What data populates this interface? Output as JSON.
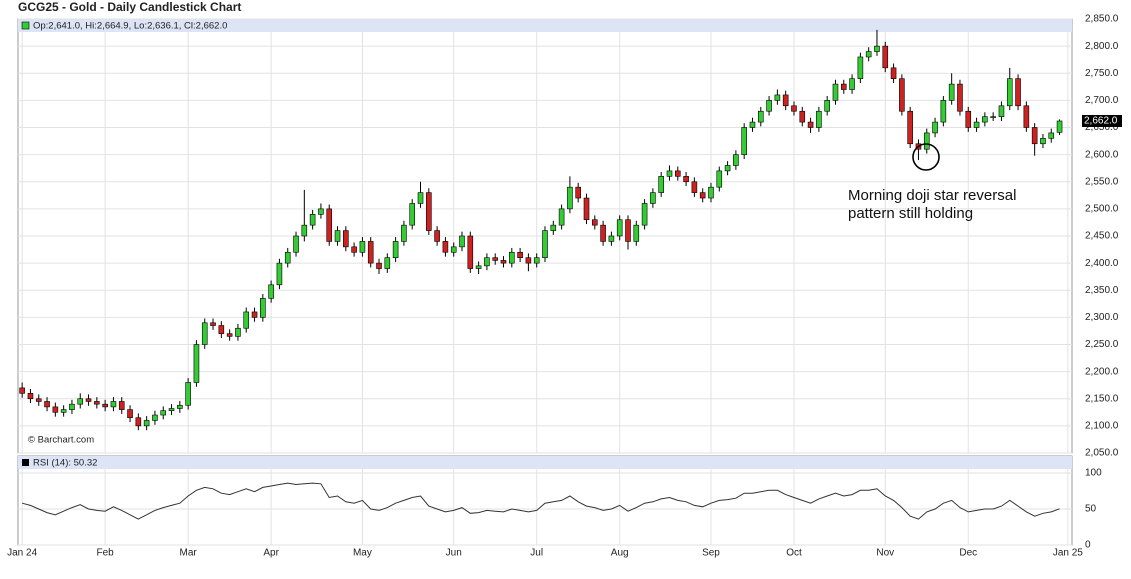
{
  "chart_data": [
    {
      "type": "candlestick",
      "title": "GCG25 - Gold - Daily Candlestick Chart",
      "legend_label": "Op:2,641.0, Hi:2,664.9, Lo:2,636.1, Cl:2,662.0",
      "credit": "© Barchart.com",
      "annotation": "Morning doji star reversal pattern still holding",
      "up_color": "#33cc33",
      "down_color": "#cc2222",
      "grid": true,
      "xlim": [
        -0.5,
        126.5
      ],
      "xticks": [
        {
          "value": 0,
          "label": "Jan 24"
        },
        {
          "value": 10,
          "label": "Feb"
        },
        {
          "value": 20,
          "label": "Mar"
        },
        {
          "value": 30,
          "label": "Apr"
        },
        {
          "value": 41,
          "label": "May"
        },
        {
          "value": 52,
          "label": "Jun"
        },
        {
          "value": 62,
          "label": "Jul"
        },
        {
          "value": 72,
          "label": "Aug"
        },
        {
          "value": 83,
          "label": "Sep"
        },
        {
          "value": 93,
          "label": "Oct"
        },
        {
          "value": 104,
          "label": "Nov"
        },
        {
          "value": 114,
          "label": "Dec"
        },
        {
          "value": 126,
          "label": "Jan 25"
        }
      ],
      "ylim": [
        2050,
        2850
      ],
      "yticks": [
        {
          "value": 2050,
          "label": "2,050.0"
        },
        {
          "value": 2100,
          "label": "2,100.0"
        },
        {
          "value": 2150,
          "label": "2,150.0"
        },
        {
          "value": 2200,
          "label": "2,200.0"
        },
        {
          "value": 2250,
          "label": "2,250.0"
        },
        {
          "value": 2300,
          "label": "2,300.0"
        },
        {
          "value": 2350,
          "label": "2,350.0"
        },
        {
          "value": 2400,
          "label": "2,400.0"
        },
        {
          "value": 2450,
          "label": "2,450.0"
        },
        {
          "value": 2500,
          "label": "2,500.0"
        },
        {
          "value": 2550,
          "label": "2,550.0"
        },
        {
          "value": 2600,
          "label": "2,600.0"
        },
        {
          "value": 2650,
          "label": "2,650.0"
        },
        {
          "value": 2700,
          "label": "2,700.0"
        },
        {
          "value": 2750,
          "label": "2,750.0"
        },
        {
          "value": 2800,
          "label": "2,800.0"
        },
        {
          "value": 2850,
          "label": "2,850.0"
        }
      ],
      "last_price": {
        "value": 2662.0,
        "label": "2,662.0"
      },
      "open": [
        2170,
        2160,
        2150,
        2145,
        2135,
        2125,
        2130,
        2140,
        2150,
        2145,
        2140,
        2135,
        2145,
        2130,
        2115,
        2100,
        2110,
        2120,
        2128,
        2132,
        2138,
        2180,
        2250,
        2290,
        2285,
        2270,
        2265,
        2280,
        2310,
        2300,
        2335,
        2360,
        2400,
        2420,
        2450,
        2470,
        2490,
        2500,
        2440,
        2460,
        2430,
        2420,
        2440,
        2400,
        2390,
        2410,
        2440,
        2470,
        2510,
        2530,
        2460,
        2440,
        2420,
        2430,
        2450,
        2390,
        2395,
        2410,
        2405,
        2400,
        2420,
        2410,
        2400,
        2410,
        2460,
        2470,
        2500,
        2540,
        2520,
        2480,
        2470,
        2440,
        2450,
        2480,
        2440,
        2470,
        2510,
        2530,
        2560,
        2570,
        2560,
        2550,
        2530,
        2520,
        2540,
        2570,
        2580,
        2600,
        2650,
        2660,
        2680,
        2700,
        2710,
        2690,
        2680,
        2660,
        2650,
        2680,
        2700,
        2730,
        2720,
        2740,
        2780,
        2790,
        2800,
        2760,
        2740,
        2680,
        2620,
        2610,
        2640,
        2660,
        2700,
        2730,
        2680,
        2650,
        2660,
        2670,
        2670,
        2690,
        2740,
        2690,
        2650,
        2620,
        2630,
        2641.0
      ],
      "high": [
        2180,
        2168,
        2158,
        2153,
        2143,
        2138,
        2148,
        2160,
        2158,
        2153,
        2148,
        2153,
        2153,
        2138,
        2123,
        2118,
        2128,
        2136,
        2140,
        2146,
        2188,
        2258,
        2298,
        2298,
        2293,
        2278,
        2288,
        2318,
        2318,
        2343,
        2368,
        2408,
        2428,
        2458,
        2535,
        2498,
        2510,
        2508,
        2468,
        2468,
        2438,
        2448,
        2448,
        2408,
        2418,
        2448,
        2478,
        2518,
        2550,
        2538,
        2468,
        2448,
        2438,
        2458,
        2458,
        2403,
        2418,
        2418,
        2413,
        2428,
        2428,
        2418,
        2418,
        2468,
        2478,
        2508,
        2560,
        2548,
        2528,
        2488,
        2478,
        2458,
        2488,
        2488,
        2478,
        2518,
        2538,
        2568,
        2580,
        2578,
        2568,
        2558,
        2538,
        2548,
        2578,
        2588,
        2608,
        2658,
        2668,
        2688,
        2708,
        2720,
        2718,
        2698,
        2688,
        2668,
        2688,
        2708,
        2738,
        2738,
        2748,
        2788,
        2798,
        2830,
        2808,
        2768,
        2748,
        2688,
        2628,
        2648,
        2668,
        2708,
        2750,
        2738,
        2688,
        2668,
        2678,
        2678,
        2698,
        2760,
        2748,
        2698,
        2658,
        2638,
        2648,
        2664.9
      ],
      "low": [
        2152,
        2142,
        2137,
        2127,
        2117,
        2117,
        2122,
        2132,
        2137,
        2132,
        2127,
        2127,
        2122,
        2107,
        2092,
        2092,
        2102,
        2112,
        2120,
        2124,
        2130,
        2172,
        2242,
        2277,
        2262,
        2257,
        2257,
        2272,
        2292,
        2292,
        2327,
        2352,
        2392,
        2412,
        2440,
        2462,
        2482,
        2432,
        2432,
        2422,
        2412,
        2412,
        2392,
        2380,
        2382,
        2402,
        2432,
        2462,
        2502,
        2452,
        2432,
        2412,
        2412,
        2422,
        2382,
        2380,
        2387,
        2397,
        2392,
        2392,
        2402,
        2385,
        2392,
        2402,
        2452,
        2462,
        2492,
        2512,
        2472,
        2462,
        2432,
        2432,
        2442,
        2425,
        2432,
        2462,
        2502,
        2522,
        2552,
        2552,
        2542,
        2522,
        2512,
        2512,
        2532,
        2562,
        2572,
        2592,
        2642,
        2652,
        2672,
        2692,
        2682,
        2672,
        2652,
        2640,
        2642,
        2672,
        2692,
        2712,
        2712,
        2732,
        2772,
        2782,
        2752,
        2732,
        2672,
        2612,
        2590,
        2602,
        2632,
        2652,
        2692,
        2672,
        2642,
        2642,
        2652,
        2662,
        2662,
        2682,
        2682,
        2642,
        2598,
        2612,
        2622,
        2636.1
      ],
      "close": [
        2160,
        2150,
        2145,
        2135,
        2125,
        2130,
        2140,
        2150,
        2145,
        2140,
        2135,
        2145,
        2130,
        2115,
        2100,
        2110,
        2120,
        2128,
        2132,
        2138,
        2180,
        2250,
        2290,
        2285,
        2270,
        2265,
        2280,
        2310,
        2300,
        2335,
        2360,
        2400,
        2420,
        2450,
        2470,
        2490,
        2500,
        2440,
        2460,
        2430,
        2420,
        2440,
        2400,
        2390,
        2410,
        2440,
        2470,
        2510,
        2530,
        2460,
        2440,
        2420,
        2430,
        2450,
        2390,
        2395,
        2410,
        2405,
        2400,
        2420,
        2410,
        2400,
        2410,
        2460,
        2470,
        2500,
        2540,
        2520,
        2480,
        2470,
        2440,
        2450,
        2480,
        2440,
        2470,
        2510,
        2530,
        2560,
        2570,
        2560,
        2550,
        2530,
        2520,
        2540,
        2570,
        2580,
        2600,
        2650,
        2660,
        2680,
        2700,
        2710,
        2690,
        2680,
        2660,
        2650,
        2680,
        2700,
        2730,
        2720,
        2740,
        2780,
        2790,
        2800,
        2760,
        2740,
        2680,
        2620,
        2610,
        2640,
        2660,
        2700,
        2730,
        2680,
        2650,
        2660,
        2670,
        2670,
        2690,
        2740,
        2690,
        2650,
        2620,
        2630,
        2640,
        2662.0
      ]
    },
    {
      "type": "line",
      "legend_label": "RSI (14): 50.32",
      "color": "#333333",
      "xlim": [
        -0.5,
        126.5
      ],
      "ylim": [
        0,
        100
      ],
      "yticks": [
        0,
        50,
        100
      ],
      "values": [
        58,
        55,
        50,
        45,
        42,
        47,
        52,
        56,
        50,
        48,
        47,
        53,
        48,
        42,
        36,
        42,
        48,
        52,
        55,
        58,
        68,
        76,
        80,
        78,
        72,
        70,
        74,
        78,
        74,
        80,
        82,
        84,
        86,
        84,
        85,
        86,
        85,
        66,
        68,
        60,
        58,
        62,
        50,
        48,
        52,
        58,
        62,
        66,
        68,
        54,
        50,
        46,
        48,
        52,
        44,
        45,
        48,
        47,
        46,
        50,
        48,
        46,
        48,
        58,
        60,
        62,
        68,
        60,
        54,
        52,
        48,
        50,
        55,
        47,
        52,
        58,
        60,
        64,
        66,
        62,
        60,
        55,
        53,
        58,
        62,
        63,
        65,
        72,
        72,
        74,
        76,
        76,
        70,
        66,
        62,
        58,
        64,
        68,
        72,
        68,
        70,
        76,
        76,
        78,
        68,
        62,
        52,
        40,
        36,
        46,
        50,
        58,
        62,
        52,
        46,
        48,
        50,
        50,
        54,
        62,
        54,
        46,
        40,
        44,
        46,
        50.32
      ]
    }
  ]
}
